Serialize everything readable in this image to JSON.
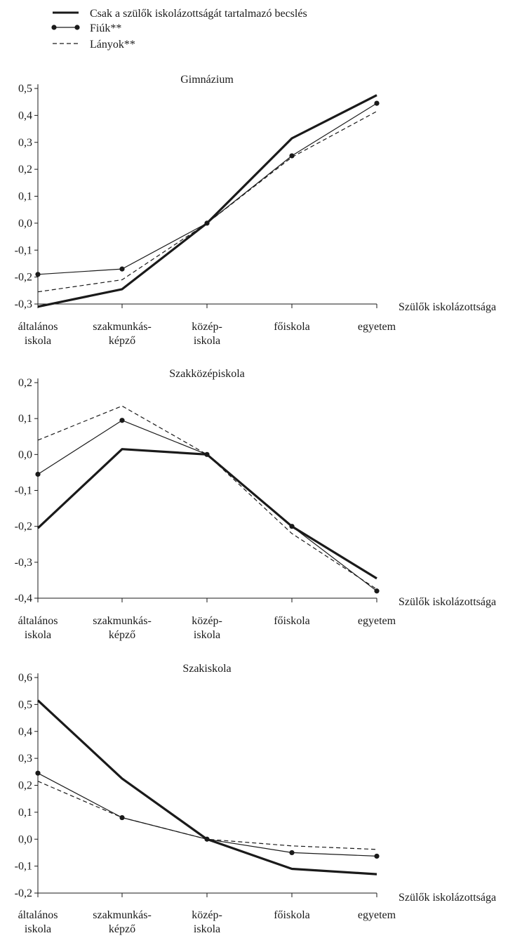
{
  "legend": {
    "items": [
      {
        "label": "Csak a szülők iskolázottságát tartalmazó becslés",
        "style": "thick"
      },
      {
        "label": "Fiúk**",
        "style": "marker"
      },
      {
        "label": "Lányok**",
        "style": "dashed"
      }
    ]
  },
  "chart_data": [
    {
      "type": "line",
      "title": "Gimnázium",
      "xlabel": "Szülők iskolázottsága",
      "categories": [
        [
          "általános",
          "iskola"
        ],
        [
          "szakmunkás-",
          "képző"
        ],
        [
          "közép-",
          "iskola"
        ],
        [
          "főiskola"
        ],
        [
          "egyetem"
        ]
      ],
      "ylim": [
        -0.3,
        0.5
      ],
      "yticks": [
        -0.3,
        -0.2,
        -0.1,
        0.0,
        0.1,
        0.2,
        0.3,
        0.4,
        0.5
      ],
      "ytick_labels": [
        "-0,3",
        "-0,2",
        "-0,1",
        "0,0",
        "0,1",
        "0,2",
        "0,3",
        "0,4",
        "0,5"
      ],
      "series": [
        {
          "name": "Csak a szülők iskolázottságát tartalmazó becslés",
          "style": "thick",
          "values": [
            -0.31,
            -0.245,
            0.0,
            0.315,
            0.475
          ]
        },
        {
          "name": "Fiúk**",
          "style": "marker",
          "values": [
            -0.19,
            -0.17,
            0.0,
            0.25,
            0.445
          ]
        },
        {
          "name": "Lányok**",
          "style": "dashed",
          "values": [
            -0.255,
            -0.21,
            0.0,
            0.245,
            0.415
          ]
        }
      ]
    },
    {
      "type": "line",
      "title": "Szakközépiskola",
      "xlabel": "Szülők iskolázottsága",
      "categories": [
        [
          "általános",
          "iskola"
        ],
        [
          "szakmunkás-",
          "képző"
        ],
        [
          "közép-",
          "iskola"
        ],
        [
          "főiskola"
        ],
        [
          "egyetem"
        ]
      ],
      "ylim": [
        -0.4,
        0.2
      ],
      "yticks": [
        -0.4,
        -0.3,
        -0.2,
        -0.1,
        0.0,
        0.1,
        0.2
      ],
      "ytick_labels": [
        "-0,4",
        "-0,3",
        "-0,2",
        "-0,1",
        "0,0",
        "0,1",
        "0,2"
      ],
      "series": [
        {
          "name": "Csak a szülők iskolázottságát tartalmazó becslés",
          "style": "thick",
          "values": [
            -0.205,
            0.015,
            0.0,
            -0.2,
            -0.345
          ]
        },
        {
          "name": "Fiúk**",
          "style": "marker",
          "values": [
            -0.055,
            0.095,
            0.0,
            -0.2,
            -0.38
          ]
        },
        {
          "name": "Lányok**",
          "style": "dashed",
          "values": [
            0.04,
            0.135,
            0.0,
            -0.22,
            -0.375
          ]
        }
      ]
    },
    {
      "type": "line",
      "title": "Szakiskola",
      "xlabel": "Szülők iskolázottsága",
      "categories": [
        [
          "általános",
          "iskola"
        ],
        [
          "szakmunkás-",
          "képző"
        ],
        [
          "közép-",
          "iskola"
        ],
        [
          "főiskola"
        ],
        [
          "egyetem"
        ]
      ],
      "ylim": [
        -0.2,
        0.6
      ],
      "yticks": [
        -0.2,
        -0.1,
        0.0,
        0.1,
        0.2,
        0.3,
        0.4,
        0.5,
        0.6
      ],
      "ytick_labels": [
        "-0,2",
        "-0,1",
        "0,0",
        "0,1",
        "0,2",
        "0,3",
        "0,4",
        "0,5",
        "0,6"
      ],
      "series": [
        {
          "name": "Csak a szülők iskolázottságát tartalmazó becslés",
          "style": "thick",
          "values": [
            0.515,
            0.225,
            0.0,
            -0.11,
            -0.13
          ]
        },
        {
          "name": "Fiúk**",
          "style": "marker",
          "values": [
            0.245,
            0.08,
            0.0,
            -0.05,
            -0.063
          ]
        },
        {
          "name": "Lányok**",
          "style": "dashed",
          "values": [
            0.215,
            0.08,
            0.0,
            -0.025,
            -0.038
          ]
        }
      ]
    }
  ]
}
